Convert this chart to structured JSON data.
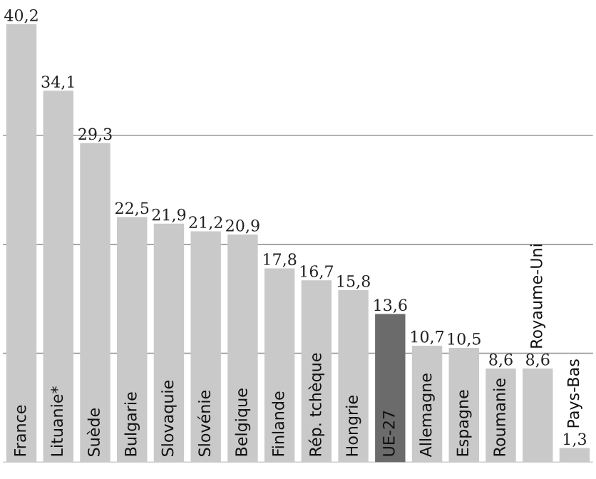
{
  "chart_data": {
    "type": "bar",
    "categories": [
      "France",
      "Lituanie*",
      "Suède",
      "Bulgarie",
      "Slovaquie",
      "Slovénie",
      "Belgique",
      "Finlande",
      "Rép. tchèque",
      "Hongrie",
      "UE-27",
      "Allemagne",
      "Espagne",
      "Roumanie",
      "Royaume-Uni",
      "Pays-Bas"
    ],
    "values": [
      40.2,
      34.1,
      29.3,
      22.5,
      21.9,
      21.2,
      20.9,
      17.8,
      16.7,
      15.8,
      13.6,
      10.7,
      10.5,
      8.6,
      8.6,
      1.3
    ],
    "value_labels": [
      "40,2",
      "34,1",
      "29,3",
      "22,5",
      "21,9",
      "21,2",
      "20,9",
      "17,8",
      "16,7",
      "15,8",
      "13,6",
      "10,7",
      "10,5",
      "8,6",
      "8,6",
      "1,3"
    ],
    "colors": [
      "#c9c9c9",
      "#c9c9c9",
      "#c9c9c9",
      "#c9c9c9",
      "#c9c9c9",
      "#c9c9c9",
      "#c9c9c9",
      "#c9c9c9",
      "#c9c9c9",
      "#c9c9c9",
      "#6b6b6b",
      "#c9c9c9",
      "#c9c9c9",
      "#c9c9c9",
      "#c9c9c9",
      "#c9c9c9"
    ],
    "yticks": [
      {
        "value": 10,
        "label": null
      },
      {
        "value": 20,
        "label": null
      },
      {
        "value": 30,
        "label": null
      }
    ],
    "grid": "y"
  }
}
